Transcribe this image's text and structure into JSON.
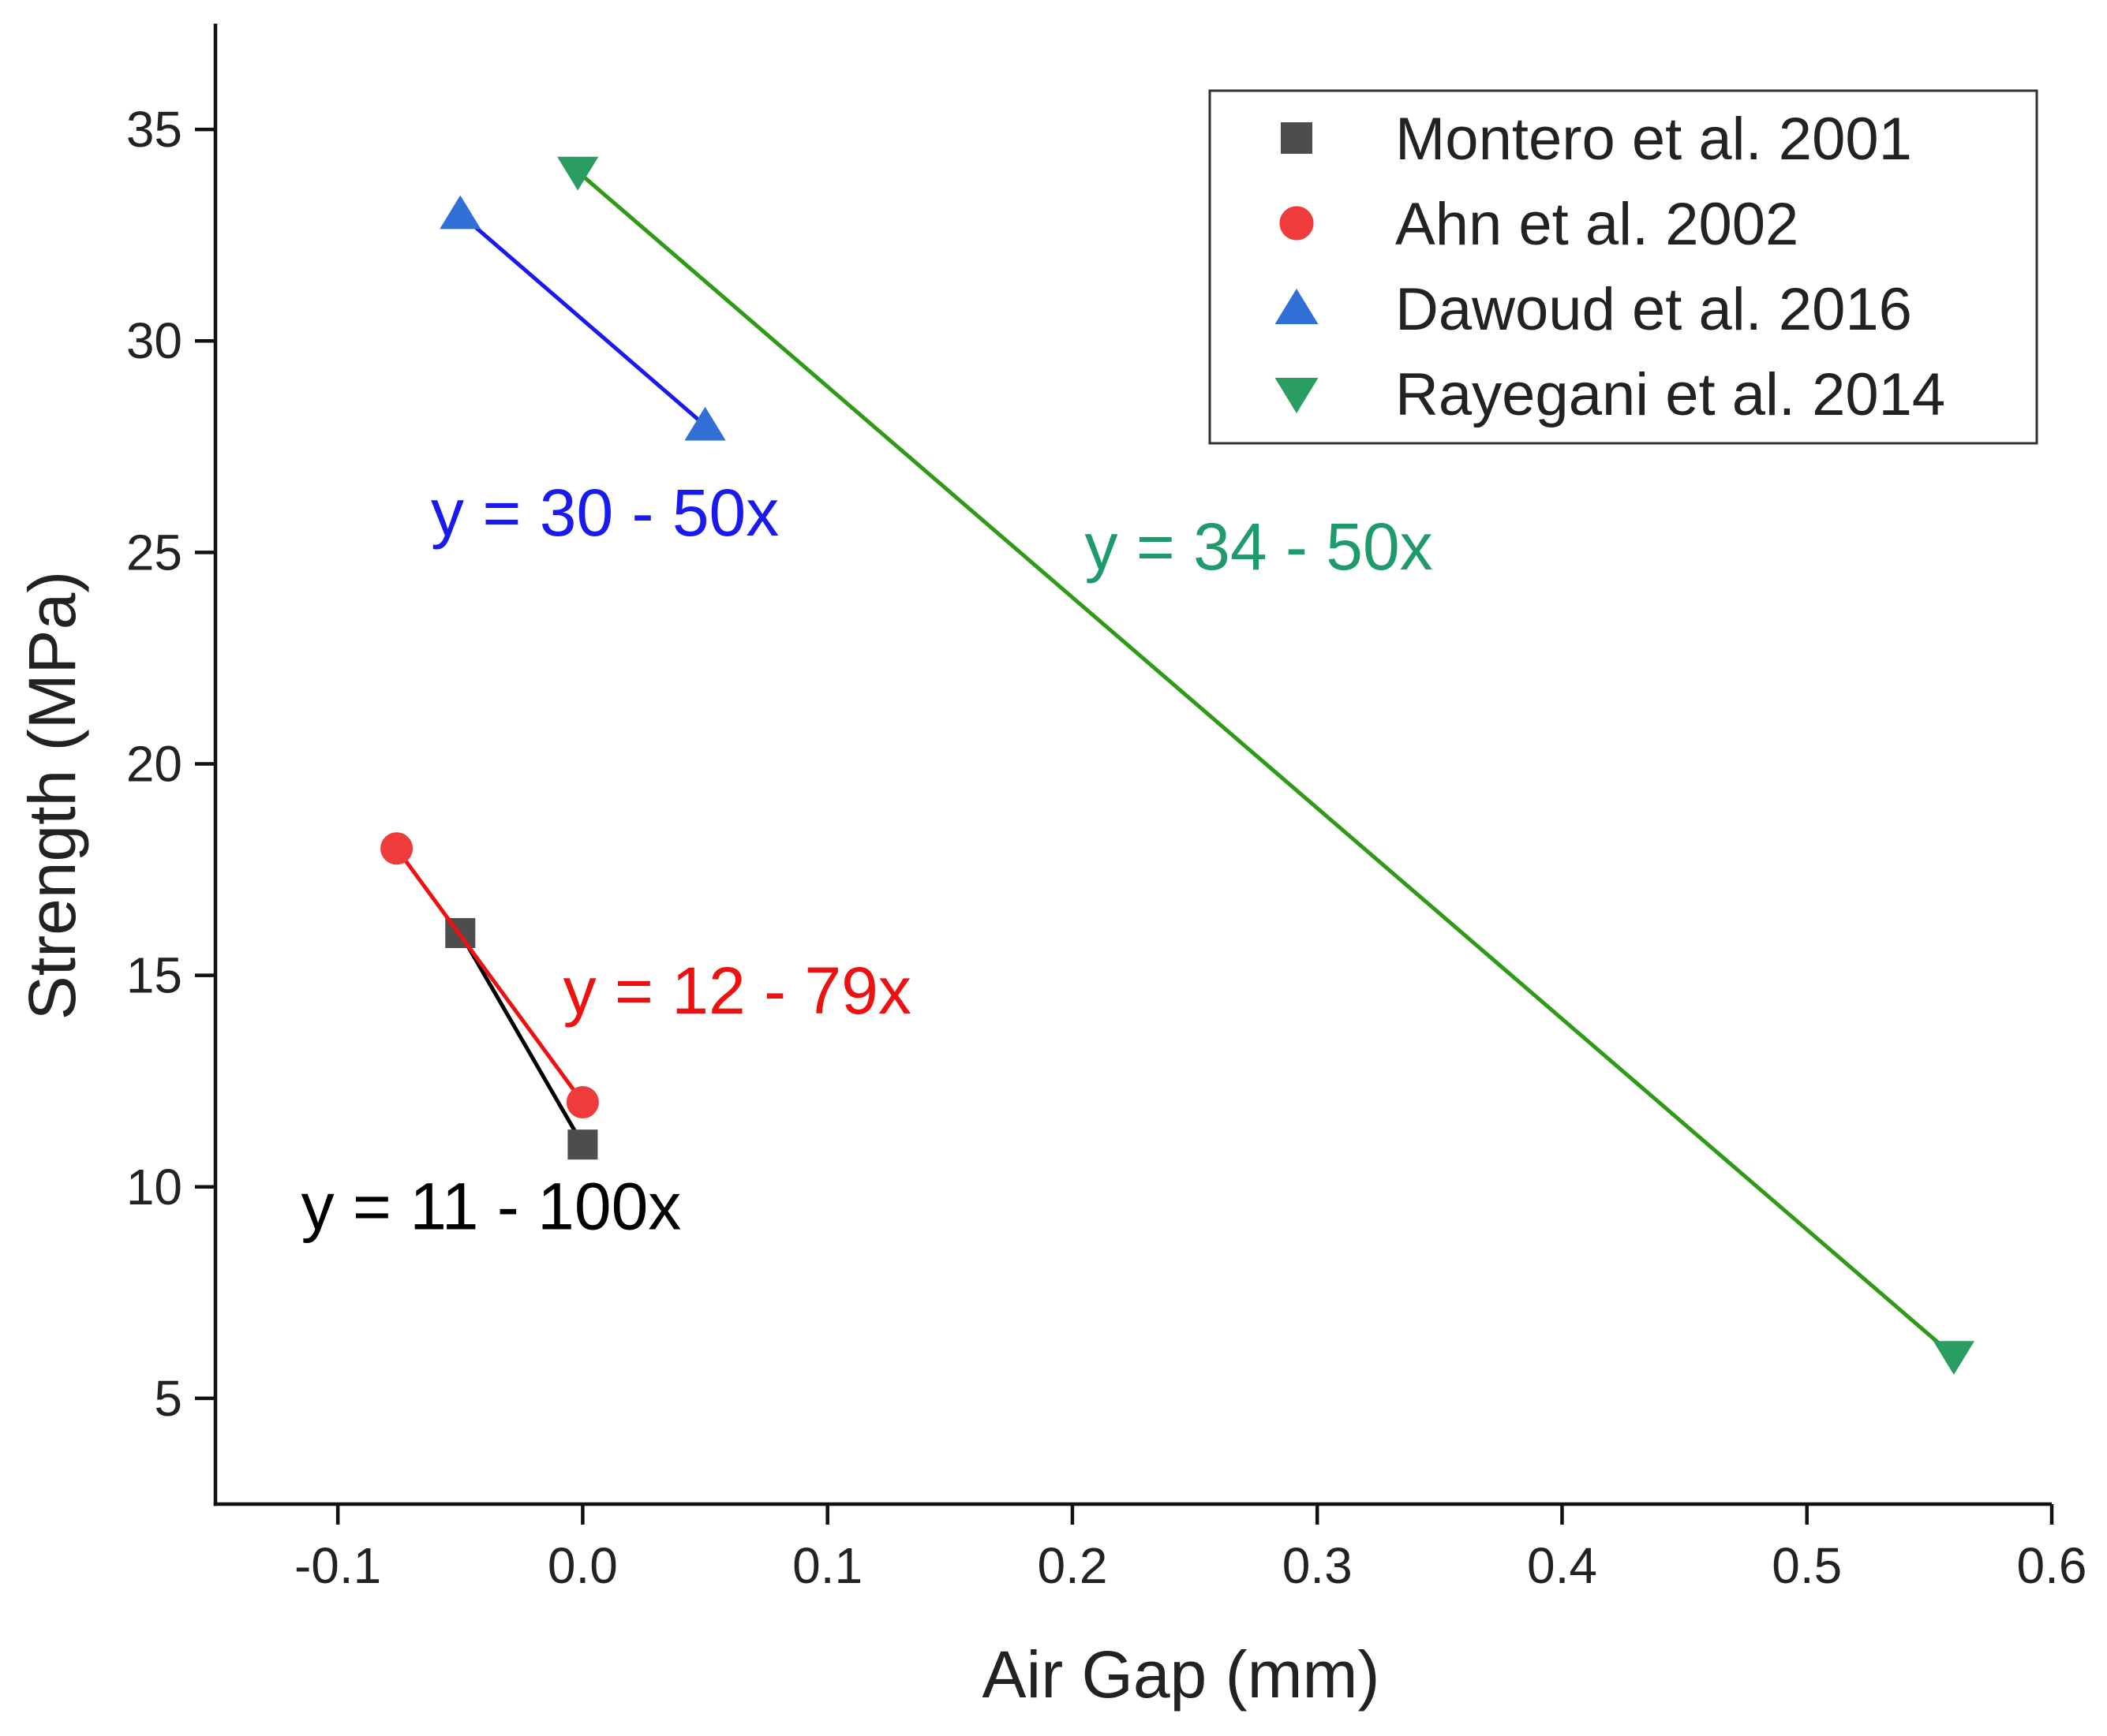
{
  "chart_data": {
    "type": "scatter",
    "title": "",
    "xlabel": "Air Gap (mm)",
    "ylabel": "Strength (MPa)",
    "xlim": [
      -0.15,
      0.6
    ],
    "ylim": [
      2.5,
      37.5
    ],
    "xticks": [
      -0.1,
      0.0,
      0.1,
      0.2,
      0.3,
      0.4,
      0.5,
      0.6
    ],
    "xtick_labels": [
      "-0.1",
      "0.0",
      "0.1",
      "0.2",
      "0.3",
      "0.4",
      "0.5",
      "0.6"
    ],
    "yticks": [
      5,
      10,
      15,
      20,
      25,
      30,
      35
    ],
    "ytick_labels": [
      "5",
      "10",
      "15",
      "20",
      "25",
      "30",
      "35"
    ],
    "grid": false,
    "legend_position": "top-right",
    "series": [
      {
        "name": "Montero et al. 2001",
        "marker": "square",
        "color": "#4d4d4d",
        "line_color": "#000000",
        "x": [
          -0.05,
          0.0
        ],
        "y": [
          16,
          11
        ],
        "fit_equation": "y = 11 - 100x",
        "fit_label_color": "#000000",
        "fit_label_at": [
          -0.115,
          9.0
        ]
      },
      {
        "name": "Ahn et al. 2002",
        "marker": "circle",
        "color": "#ef3b3b",
        "line_color": "#ee1111",
        "x": [
          -0.076,
          0.0
        ],
        "y": [
          18,
          12
        ],
        "fit_equation": "y = 12 - 79x",
        "fit_label_color": "#ee1111",
        "fit_label_at": [
          -0.008,
          14.1
        ]
      },
      {
        "name": "Dawoud et al. 2016",
        "marker": "triangle-up",
        "color": "#2f6fd6",
        "line_color": "#1a1aee",
        "x": [
          -0.05,
          0.05
        ],
        "y": [
          33,
          28
        ],
        "fit_equation": "y = 30 - 50x",
        "fit_label_color": "#1a1aee",
        "fit_label_at": [
          -0.062,
          25.4
        ]
      },
      {
        "name": "Rayegani et al. 2014",
        "marker": "triangle-down",
        "color": "#2a9d62",
        "line_color": "#2f9a16",
        "x": [
          -0.002,
          0.56
        ],
        "y": [
          34,
          6
        ],
        "fit_equation": "y = 34 - 50x",
        "fit_label_color": "#1f9a6b",
        "fit_label_at": [
          0.205,
          24.6
        ]
      }
    ]
  }
}
